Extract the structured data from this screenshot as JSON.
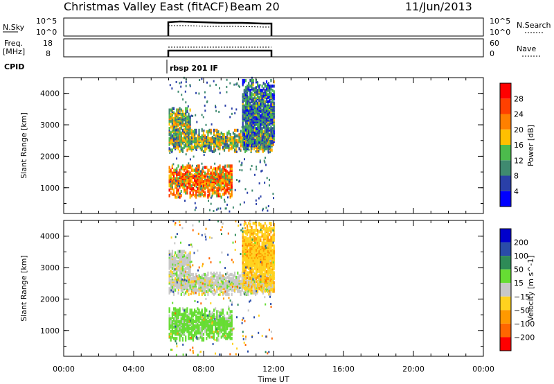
{
  "header": {
    "station": "Christmas Valley East (fitACF)",
    "beam": "Beam 20",
    "date": "11/Jun/2013"
  },
  "noise_panel": {
    "left_label": "N.Sky",
    "right_label": "N.Search",
    "left_ticks": [
      "10^5",
      "10^0"
    ],
    "right_ticks": [
      "10^5",
      "10^0"
    ]
  },
  "freq_panel": {
    "left_label_1": "Freq.",
    "left_label_2": "[MHz]",
    "right_label": "Nave",
    "left_ticks": [
      "18",
      "8"
    ],
    "right_ticks": [
      "60",
      "0"
    ]
  },
  "cpid": {
    "label": "CPID",
    "program": "rbsp 201 IF"
  },
  "colors": {
    "power_scale": [
      "#0000ff",
      "#2a40a8",
      "#3f8a70",
      "#4cbb4c",
      "#ffc000",
      "#ff8000",
      "#ff4000",
      "#ff0000"
    ],
    "velocity_scale": [
      "#0000cc",
      "#2a4ca8",
      "#2e8b57",
      "#66dd33",
      "#c8c8c8",
      "#ffd21f",
      "#ff9900",
      "#ff6600",
      "#ff0000"
    ]
  },
  "chart_data": [
    {
      "type": "heatmap",
      "variable": "Power",
      "ylabel": "Slant Range [km]",
      "ylim": [
        180,
        4500
      ],
      "xlim": [
        "00:00",
        "24:00"
      ],
      "y_ticks": [
        1000,
        2000,
        3000,
        4000
      ],
      "colorbar_label": "Power [dB]",
      "colorbar_ticks": [
        4,
        8,
        12,
        16,
        20,
        24,
        28
      ],
      "colorbar_range": [
        0,
        32
      ],
      "data_window": [
        "06:00",
        "12:00"
      ],
      "echo_bands": [
        {
          "t_start": 6.0,
          "t_end": 9.6,
          "r_low": 650,
          "r_high": 1650,
          "power": 22
        },
        {
          "t_start": 6.0,
          "t_end": 12.0,
          "r_low": 2100,
          "r_high": 2800,
          "power": 14
        },
        {
          "t_start": 6.0,
          "t_end": 7.2,
          "r_low": 2700,
          "r_high": 3500,
          "power": 14
        },
        {
          "t_start": 10.2,
          "t_end": 12.0,
          "r_low": 2200,
          "r_high": 4400,
          "power": 9
        }
      ]
    },
    {
      "type": "heatmap",
      "variable": "Velocity",
      "ylabel": "Slant Range [km]",
      "xlabel": "Time UT",
      "ylim": [
        180,
        4500
      ],
      "xlim": [
        "00:00",
        "24:00"
      ],
      "x_ticks": [
        "00:00",
        "04:00",
        "08:00",
        "12:00",
        "16:00",
        "20:00",
        "00:00"
      ],
      "y_ticks": [
        1000,
        2000,
        3000,
        4000
      ],
      "colorbar_label": "Velocity [m s^-1]",
      "colorbar_ticks": [
        "200",
        "100",
        "50",
        "15",
        "−15",
        "−50",
        "−100",
        "−200"
      ],
      "data_window": [
        "06:00",
        "12:00"
      ],
      "echo_bands": [
        {
          "t_start": 6.0,
          "t_end": 9.6,
          "r_low": 650,
          "r_high": 1650,
          "velocity": 30
        },
        {
          "t_start": 6.0,
          "t_end": 12.0,
          "r_low": 2100,
          "r_high": 2800,
          "velocity": 0
        },
        {
          "t_start": 6.0,
          "t_end": 7.2,
          "r_low": 2700,
          "r_high": 3500,
          "velocity": 0
        },
        {
          "t_start": 10.2,
          "t_end": 12.0,
          "r_low": 2200,
          "r_high": 4400,
          "velocity": -40
        }
      ]
    }
  ]
}
